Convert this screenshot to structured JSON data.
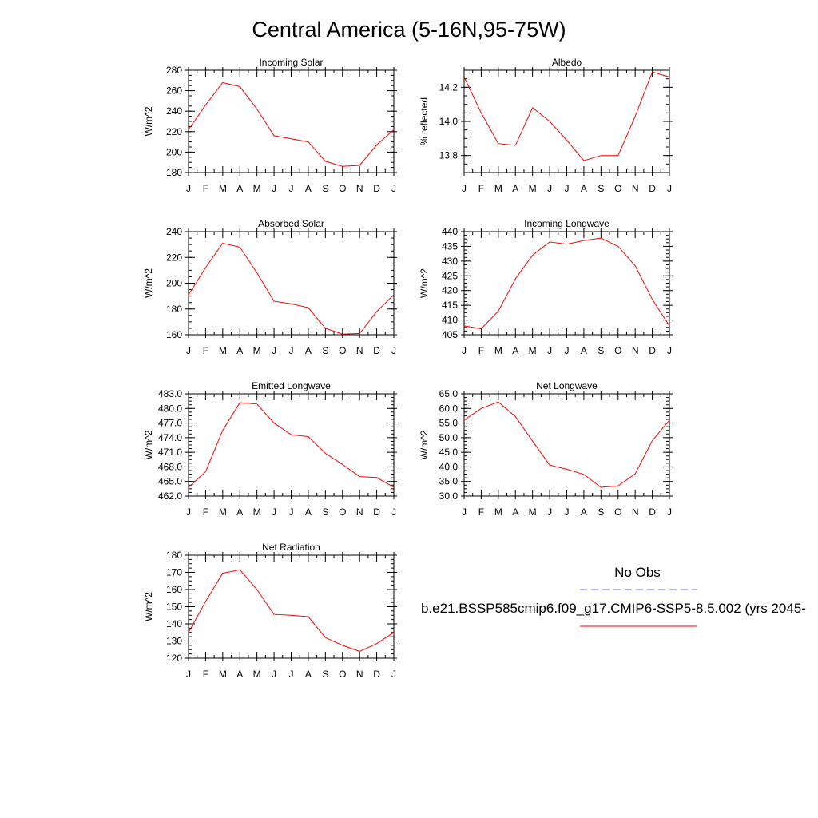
{
  "title": "Central America (5-16N,95-75W)",
  "legend": {
    "obs_label": "No Obs",
    "obs_color": "#6a6aff",
    "model_label": "b.e21.BSSP585cmip6.f09_g17.CMIP6-SSP5-8.5.002 (yrs 2045-",
    "model_color": "#ff0000"
  },
  "chart_data": [
    {
      "type": "line",
      "title": "Incoming Solar",
      "ylabel": "W/m^2",
      "categories": [
        "J",
        "F",
        "M",
        "A",
        "M",
        "J",
        "J",
        "A",
        "S",
        "O",
        "N",
        "D",
        "J"
      ],
      "ylim": [
        180,
        280
      ],
      "yticks": [
        "180",
        "200",
        "220",
        "240",
        "260",
        "280"
      ],
      "series": [
        {
          "values": [
            222,
            246,
            268,
            264,
            242,
            216,
            213,
            210,
            191,
            186,
            187,
            207,
            222
          ]
        }
      ]
    },
    {
      "type": "line",
      "title": "Albedo",
      "ylabel": "% reflected",
      "categories": [
        "J",
        "F",
        "M",
        "A",
        "M",
        "J",
        "J",
        "A",
        "S",
        "O",
        "N",
        "D",
        "J"
      ],
      "ylim": [
        13.7,
        14.3
      ],
      "yticks": [
        "13.8",
        "14.0",
        "14.2"
      ],
      "series": [
        {
          "values": [
            14.26,
            14.05,
            13.87,
            13.86,
            14.08,
            14.0,
            13.89,
            13.77,
            13.8,
            13.8,
            14.03,
            14.29,
            14.26
          ]
        }
      ]
    },
    {
      "type": "line",
      "title": "Absorbed Solar",
      "ylabel": "W/m^2",
      "categories": [
        "J",
        "F",
        "M",
        "A",
        "M",
        "J",
        "J",
        "A",
        "S",
        "O",
        "N",
        "D",
        "J"
      ],
      "ylim": [
        160,
        240
      ],
      "yticks": [
        "160",
        "180",
        "200",
        "220",
        "240"
      ],
      "series": [
        {
          "values": [
            191,
            212,
            231,
            228,
            208,
            186,
            184,
            181,
            165,
            160.5,
            161,
            178,
            191
          ]
        }
      ]
    },
    {
      "type": "line",
      "title": "Incoming Longwave",
      "ylabel": "W/m^2",
      "categories": [
        "J",
        "F",
        "M",
        "A",
        "M",
        "J",
        "J",
        "A",
        "S",
        "O",
        "N",
        "D",
        "J"
      ],
      "ylim": [
        405,
        440
      ],
      "yticks": [
        "405",
        "410",
        "415",
        "420",
        "425",
        "430",
        "435",
        "440"
      ],
      "series": [
        {
          "values": [
            408,
            407,
            413,
            424,
            432,
            436.5,
            435.7,
            437,
            437.8,
            435,
            428.4,
            417,
            408
          ]
        }
      ]
    },
    {
      "type": "line",
      "title": "Emitted Longwave",
      "ylabel": "W/m^2",
      "categories": [
        "J",
        "F",
        "M",
        "A",
        "M",
        "J",
        "J",
        "A",
        "S",
        "O",
        "N",
        "D",
        "J"
      ],
      "ylim": [
        462,
        483
      ],
      "yticks": [
        "462.0",
        "465.0",
        "468.0",
        "471.0",
        "474.0",
        "477.0",
        "480.0",
        "483.0"
      ],
      "series": [
        {
          "values": [
            463.8,
            467,
            475.5,
            481.2,
            480.9,
            477,
            474.6,
            474.2,
            470.8,
            468.5,
            466,
            465.8,
            463.8
          ]
        }
      ]
    },
    {
      "type": "line",
      "title": "Net Longwave",
      "ylabel": "W/m^2",
      "categories": [
        "J",
        "F",
        "M",
        "A",
        "M",
        "J",
        "J",
        "A",
        "S",
        "O",
        "N",
        "D",
        "J"
      ],
      "ylim": [
        30,
        65
      ],
      "yticks": [
        "30.0",
        "35.0",
        "40.0",
        "45.0",
        "50.0",
        "55.0",
        "60.0",
        "65.0"
      ],
      "series": [
        {
          "values": [
            56,
            60,
            62.2,
            57.2,
            48.8,
            40.6,
            39.2,
            37.4,
            33,
            33.5,
            37.6,
            49,
            56
          ]
        }
      ]
    },
    {
      "type": "line",
      "title": "Net Radiation",
      "ylabel": "W/m^2",
      "categories": [
        "J",
        "F",
        "M",
        "A",
        "M",
        "J",
        "J",
        "A",
        "S",
        "O",
        "N",
        "D",
        "J"
      ],
      "ylim": [
        120,
        180
      ],
      "yticks": [
        "120",
        "130",
        "140",
        "150",
        "160",
        "170",
        "180"
      ],
      "series": [
        {
          "values": [
            135,
            153,
            169.5,
            171.5,
            160,
            145.5,
            145,
            144.2,
            132,
            127.5,
            124,
            128.5,
            135
          ]
        }
      ]
    }
  ]
}
